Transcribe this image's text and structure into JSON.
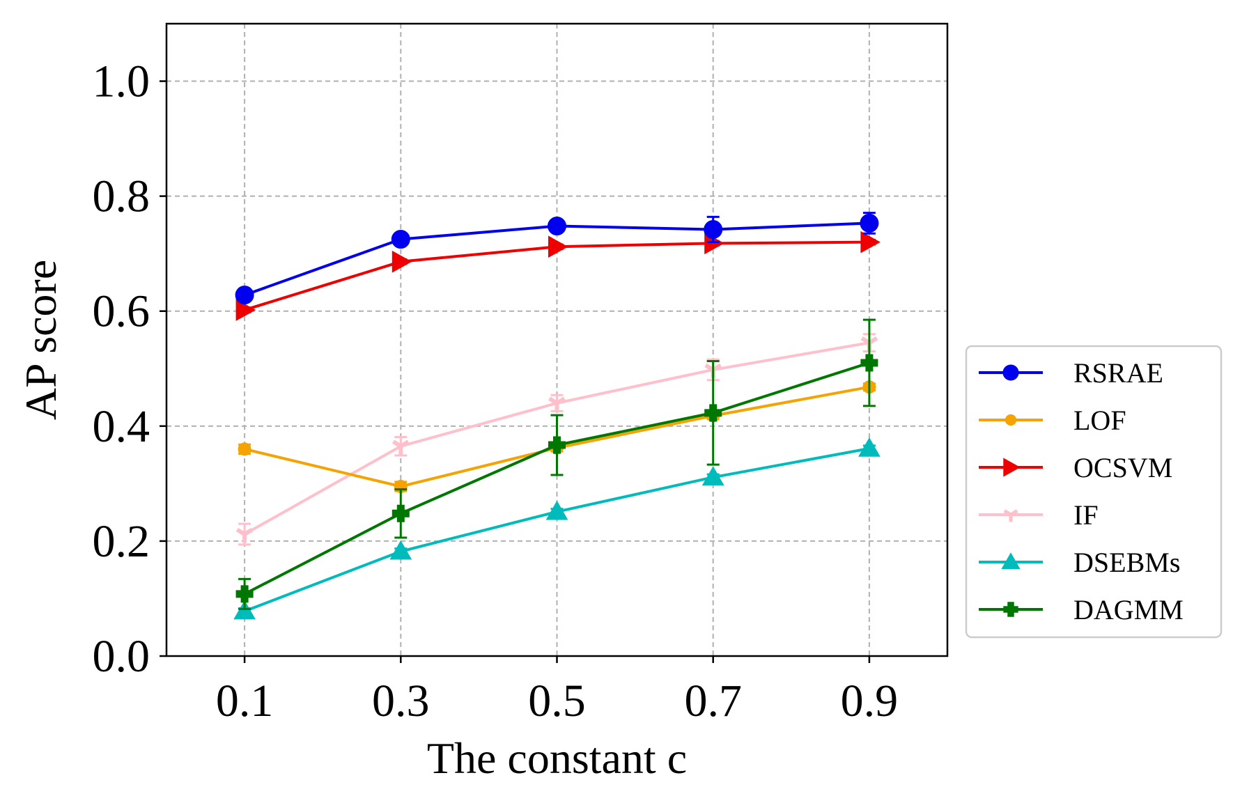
{
  "chart_data": {
    "type": "line",
    "title": "",
    "xlabel": "The constant c",
    "ylabel": "AP score",
    "x": [
      0.1,
      0.3,
      0.5,
      0.7,
      0.9
    ],
    "x_tick_labels": [
      "0.1",
      "0.3",
      "0.5",
      "0.7",
      "0.9"
    ],
    "xlim": [
      0.0,
      1.0
    ],
    "ylim": [
      0.0,
      1.1
    ],
    "y_ticks": [
      0.0,
      0.2,
      0.4,
      0.6,
      0.8,
      1.0
    ],
    "y_tick_labels": [
      "0.0",
      "0.2",
      "0.4",
      "0.6",
      "0.8",
      "1.0"
    ],
    "grid": true,
    "legend_position": "outside right",
    "series": [
      {
        "name": "RSRAE",
        "color": "#0000ee",
        "marker": "circle",
        "values": [
          0.628,
          0.725,
          0.748,
          0.742,
          0.753
        ],
        "errors": [
          0.01,
          0.008,
          0.008,
          0.022,
          0.018
        ]
      },
      {
        "name": "LOF",
        "color": "#f5a300",
        "marker": "small-circle",
        "values": [
          0.36,
          0.295,
          0.362,
          0.418,
          0.468
        ],
        "errors": [
          0.008,
          0.008,
          0.006,
          0.006,
          0.006
        ]
      },
      {
        "name": "OCSVM",
        "color": "#ee0000",
        "marker": "triangle-right",
        "values": [
          0.602,
          0.686,
          0.712,
          0.718,
          0.72
        ],
        "errors": [
          0.004,
          0.004,
          0.004,
          0.004,
          0.004
        ]
      },
      {
        "name": "IF",
        "color": "#ffc0cb",
        "marker": "tri-down",
        "values": [
          0.212,
          0.365,
          0.44,
          0.498,
          0.545
        ],
        "errors": [
          0.018,
          0.016,
          0.014,
          0.018,
          0.015
        ]
      },
      {
        "name": "DSEBMs",
        "color": "#00bbbb",
        "marker": "triangle-up",
        "values": [
          0.078,
          0.182,
          0.251,
          0.311,
          0.361
        ],
        "errors": [
          0.005,
          0.005,
          0.005,
          0.005,
          0.005
        ]
      },
      {
        "name": "DAGMM",
        "color": "#007700",
        "marker": "plus-filled",
        "values": [
          0.108,
          0.248,
          0.367,
          0.423,
          0.51
        ],
        "errors": [
          0.026,
          0.042,
          0.052,
          0.09,
          0.075
        ]
      }
    ]
  }
}
